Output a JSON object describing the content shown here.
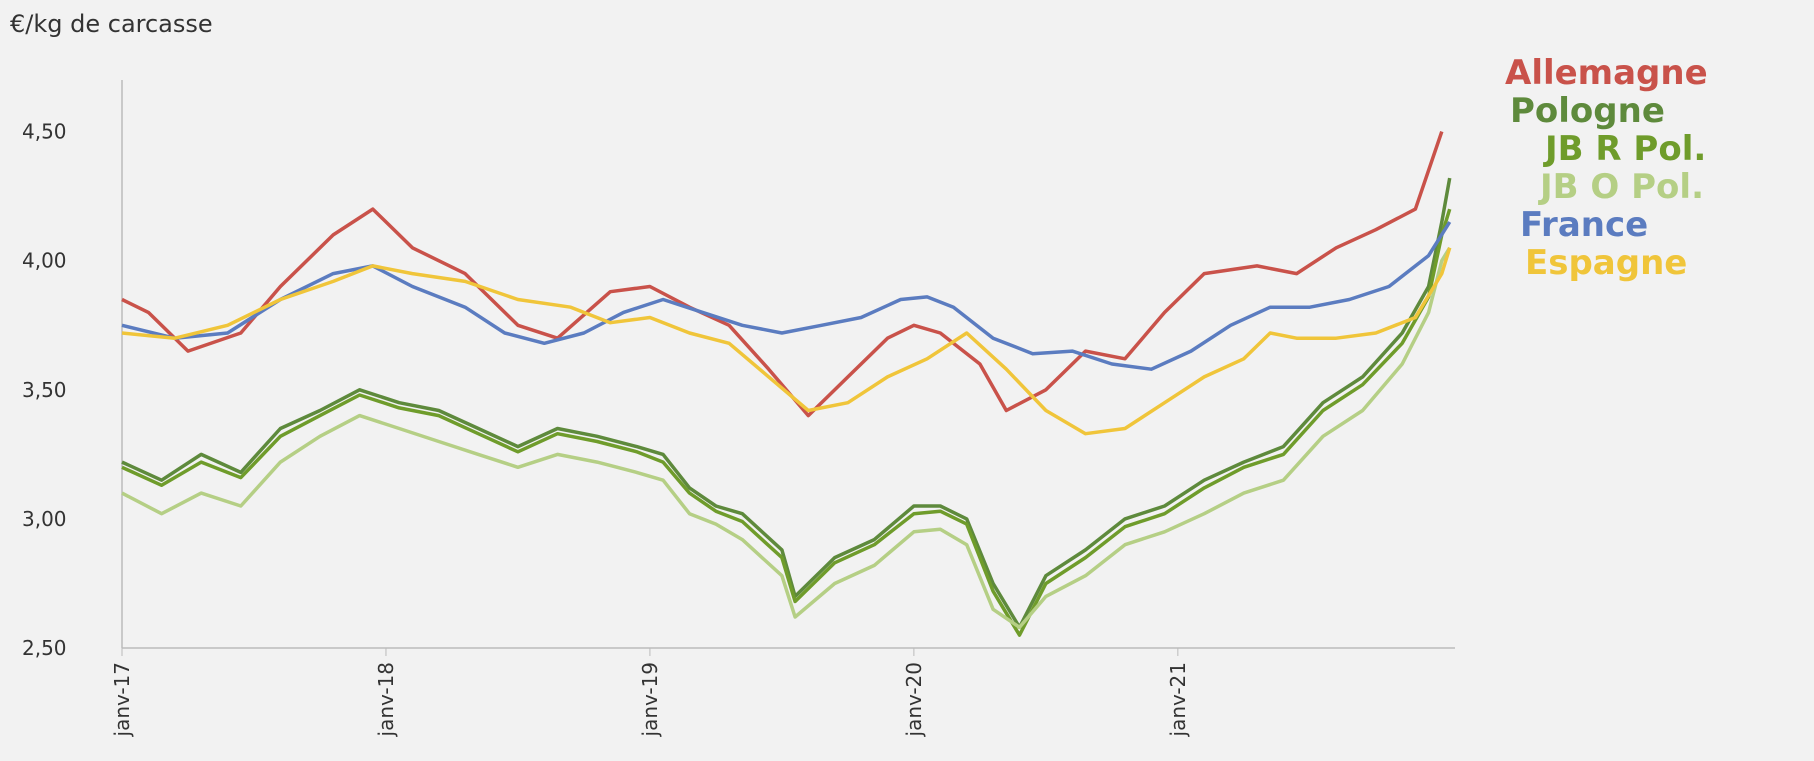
{
  "chart_data": {
    "type": "line",
    "unit_label": "€/kg de carcasse",
    "y_ticks": [
      "4,50",
      "4,00",
      "3,50",
      "3,00",
      "2,50"
    ],
    "ylim": [
      2.5,
      4.7
    ],
    "x_ticks": [
      "janv-17",
      "janv-18",
      "janv-19",
      "janv-20",
      "janv-21"
    ],
    "xlim": [
      2017.0,
      2022.05
    ],
    "grid": false,
    "legend_position": "right",
    "series": [
      {
        "name": "Allemagne",
        "color": "#c9524a",
        "points": [
          [
            2017.0,
            3.85
          ],
          [
            2017.1,
            3.8
          ],
          [
            2017.25,
            3.65
          ],
          [
            2017.45,
            3.72
          ],
          [
            2017.6,
            3.9
          ],
          [
            2017.8,
            4.1
          ],
          [
            2017.95,
            4.2
          ],
          [
            2018.1,
            4.05
          ],
          [
            2018.3,
            3.95
          ],
          [
            2018.5,
            3.75
          ],
          [
            2018.65,
            3.7
          ],
          [
            2018.85,
            3.88
          ],
          [
            2019.0,
            3.9
          ],
          [
            2019.15,
            3.82
          ],
          [
            2019.3,
            3.75
          ],
          [
            2019.45,
            3.58
          ],
          [
            2019.6,
            3.4
          ],
          [
            2019.75,
            3.55
          ],
          [
            2019.9,
            3.7
          ],
          [
            2020.0,
            3.75
          ],
          [
            2020.1,
            3.72
          ],
          [
            2020.25,
            3.6
          ],
          [
            2020.35,
            3.42
          ],
          [
            2020.5,
            3.5
          ],
          [
            2020.65,
            3.65
          ],
          [
            2020.8,
            3.62
          ],
          [
            2020.95,
            3.8
          ],
          [
            2021.1,
            3.95
          ],
          [
            2021.3,
            3.98
          ],
          [
            2021.45,
            3.95
          ],
          [
            2021.6,
            4.05
          ],
          [
            2021.75,
            4.12
          ],
          [
            2021.9,
            4.2
          ],
          [
            2022.0,
            4.5
          ]
        ]
      },
      {
        "name": "Pologne",
        "color": "#5e8a3c",
        "points": [
          [
            2017.0,
            3.22
          ],
          [
            2017.15,
            3.15
          ],
          [
            2017.3,
            3.25
          ],
          [
            2017.45,
            3.18
          ],
          [
            2017.6,
            3.35
          ],
          [
            2017.75,
            3.42
          ],
          [
            2017.9,
            3.5
          ],
          [
            2018.05,
            3.45
          ],
          [
            2018.2,
            3.42
          ],
          [
            2018.35,
            3.35
          ],
          [
            2018.5,
            3.28
          ],
          [
            2018.65,
            3.35
          ],
          [
            2018.8,
            3.32
          ],
          [
            2018.95,
            3.28
          ],
          [
            2019.05,
            3.25
          ],
          [
            2019.15,
            3.12
          ],
          [
            2019.25,
            3.05
          ],
          [
            2019.35,
            3.02
          ],
          [
            2019.5,
            2.88
          ],
          [
            2019.55,
            2.7
          ],
          [
            2019.7,
            2.85
          ],
          [
            2019.85,
            2.92
          ],
          [
            2020.0,
            3.05
          ],
          [
            2020.1,
            3.05
          ],
          [
            2020.2,
            3.0
          ],
          [
            2020.3,
            2.75
          ],
          [
            2020.4,
            2.58
          ],
          [
            2020.5,
            2.78
          ],
          [
            2020.65,
            2.88
          ],
          [
            2020.8,
            3.0
          ],
          [
            2020.95,
            3.05
          ],
          [
            2021.1,
            3.15
          ],
          [
            2021.25,
            3.22
          ],
          [
            2021.4,
            3.28
          ],
          [
            2021.55,
            3.45
          ],
          [
            2021.7,
            3.55
          ],
          [
            2021.85,
            3.72
          ],
          [
            2021.95,
            3.9
          ],
          [
            2022.0,
            4.15
          ],
          [
            2022.03,
            4.32
          ]
        ]
      },
      {
        "name": "JB R Pol.",
        "color": "#6f9c2b",
        "points": [
          [
            2017.0,
            3.2
          ],
          [
            2017.15,
            3.13
          ],
          [
            2017.3,
            3.22
          ],
          [
            2017.45,
            3.16
          ],
          [
            2017.6,
            3.32
          ],
          [
            2017.75,
            3.4
          ],
          [
            2017.9,
            3.48
          ],
          [
            2018.05,
            3.43
          ],
          [
            2018.2,
            3.4
          ],
          [
            2018.35,
            3.33
          ],
          [
            2018.5,
            3.26
          ],
          [
            2018.65,
            3.33
          ],
          [
            2018.8,
            3.3
          ],
          [
            2018.95,
            3.26
          ],
          [
            2019.05,
            3.22
          ],
          [
            2019.15,
            3.1
          ],
          [
            2019.25,
            3.03
          ],
          [
            2019.35,
            2.99
          ],
          [
            2019.5,
            2.85
          ],
          [
            2019.55,
            2.68
          ],
          [
            2019.7,
            2.83
          ],
          [
            2019.85,
            2.9
          ],
          [
            2020.0,
            3.02
          ],
          [
            2020.1,
            3.03
          ],
          [
            2020.2,
            2.98
          ],
          [
            2020.3,
            2.72
          ],
          [
            2020.4,
            2.55
          ],
          [
            2020.5,
            2.75
          ],
          [
            2020.65,
            2.85
          ],
          [
            2020.8,
            2.97
          ],
          [
            2020.95,
            3.02
          ],
          [
            2021.1,
            3.12
          ],
          [
            2021.25,
            3.2
          ],
          [
            2021.4,
            3.25
          ],
          [
            2021.55,
            3.42
          ],
          [
            2021.7,
            3.52
          ],
          [
            2021.85,
            3.68
          ],
          [
            2021.95,
            3.86
          ],
          [
            2022.0,
            4.1
          ],
          [
            2022.03,
            4.2
          ]
        ]
      },
      {
        "name": "JB O Pol.",
        "color": "#b5cf85",
        "points": [
          [
            2017.0,
            3.1
          ],
          [
            2017.15,
            3.02
          ],
          [
            2017.3,
            3.1
          ],
          [
            2017.45,
            3.05
          ],
          [
            2017.6,
            3.22
          ],
          [
            2017.75,
            3.32
          ],
          [
            2017.9,
            3.4
          ],
          [
            2018.05,
            3.35
          ],
          [
            2018.2,
            3.3
          ],
          [
            2018.35,
            3.25
          ],
          [
            2018.5,
            3.2
          ],
          [
            2018.65,
            3.25
          ],
          [
            2018.8,
            3.22
          ],
          [
            2018.95,
            3.18
          ],
          [
            2019.05,
            3.15
          ],
          [
            2019.15,
            3.02
          ],
          [
            2019.25,
            2.98
          ],
          [
            2019.35,
            2.92
          ],
          [
            2019.5,
            2.78
          ],
          [
            2019.55,
            2.62
          ],
          [
            2019.7,
            2.75
          ],
          [
            2019.85,
            2.82
          ],
          [
            2020.0,
            2.95
          ],
          [
            2020.1,
            2.96
          ],
          [
            2020.2,
            2.9
          ],
          [
            2020.3,
            2.65
          ],
          [
            2020.4,
            2.58
          ],
          [
            2020.5,
            2.7
          ],
          [
            2020.65,
            2.78
          ],
          [
            2020.8,
            2.9
          ],
          [
            2020.95,
            2.95
          ],
          [
            2021.1,
            3.02
          ],
          [
            2021.25,
            3.1
          ],
          [
            2021.4,
            3.15
          ],
          [
            2021.55,
            3.32
          ],
          [
            2021.7,
            3.42
          ],
          [
            2021.85,
            3.6
          ],
          [
            2021.95,
            3.8
          ],
          [
            2022.0,
            4.0
          ],
          [
            2022.03,
            4.05
          ]
        ]
      },
      {
        "name": "France",
        "color": "#5b7cc0",
        "points": [
          [
            2017.0,
            3.75
          ],
          [
            2017.2,
            3.7
          ],
          [
            2017.4,
            3.72
          ],
          [
            2017.6,
            3.85
          ],
          [
            2017.8,
            3.95
          ],
          [
            2017.95,
            3.98
          ],
          [
            2018.1,
            3.9
          ],
          [
            2018.3,
            3.82
          ],
          [
            2018.45,
            3.72
          ],
          [
            2018.6,
            3.68
          ],
          [
            2018.75,
            3.72
          ],
          [
            2018.9,
            3.8
          ],
          [
            2019.05,
            3.85
          ],
          [
            2019.2,
            3.8
          ],
          [
            2019.35,
            3.75
          ],
          [
            2019.5,
            3.72
          ],
          [
            2019.65,
            3.75
          ],
          [
            2019.8,
            3.78
          ],
          [
            2019.95,
            3.85
          ],
          [
            2020.05,
            3.86
          ],
          [
            2020.15,
            3.82
          ],
          [
            2020.3,
            3.7
          ],
          [
            2020.45,
            3.64
          ],
          [
            2020.6,
            3.65
          ],
          [
            2020.75,
            3.6
          ],
          [
            2020.9,
            3.58
          ],
          [
            2021.05,
            3.65
          ],
          [
            2021.2,
            3.75
          ],
          [
            2021.35,
            3.82
          ],
          [
            2021.5,
            3.82
          ],
          [
            2021.65,
            3.85
          ],
          [
            2021.8,
            3.9
          ],
          [
            2021.95,
            4.02
          ],
          [
            2022.03,
            4.15
          ]
        ]
      },
      {
        "name": "Espagne",
        "color": "#f0c53a",
        "points": [
          [
            2017.0,
            3.72
          ],
          [
            2017.2,
            3.7
          ],
          [
            2017.4,
            3.75
          ],
          [
            2017.6,
            3.85
          ],
          [
            2017.8,
            3.92
          ],
          [
            2017.95,
            3.98
          ],
          [
            2018.1,
            3.95
          ],
          [
            2018.3,
            3.92
          ],
          [
            2018.5,
            3.85
          ],
          [
            2018.7,
            3.82
          ],
          [
            2018.85,
            3.76
          ],
          [
            2019.0,
            3.78
          ],
          [
            2019.15,
            3.72
          ],
          [
            2019.3,
            3.68
          ],
          [
            2019.45,
            3.55
          ],
          [
            2019.6,
            3.42
          ],
          [
            2019.75,
            3.45
          ],
          [
            2019.9,
            3.55
          ],
          [
            2020.05,
            3.62
          ],
          [
            2020.2,
            3.72
          ],
          [
            2020.35,
            3.58
          ],
          [
            2020.5,
            3.42
          ],
          [
            2020.65,
            3.33
          ],
          [
            2020.8,
            3.35
          ],
          [
            2020.95,
            3.45
          ],
          [
            2021.1,
            3.55
          ],
          [
            2021.25,
            3.62
          ],
          [
            2021.35,
            3.72
          ],
          [
            2021.45,
            3.7
          ],
          [
            2021.6,
            3.7
          ],
          [
            2021.75,
            3.72
          ],
          [
            2021.9,
            3.78
          ],
          [
            2022.0,
            3.95
          ],
          [
            2022.03,
            4.05
          ]
        ]
      }
    ]
  }
}
